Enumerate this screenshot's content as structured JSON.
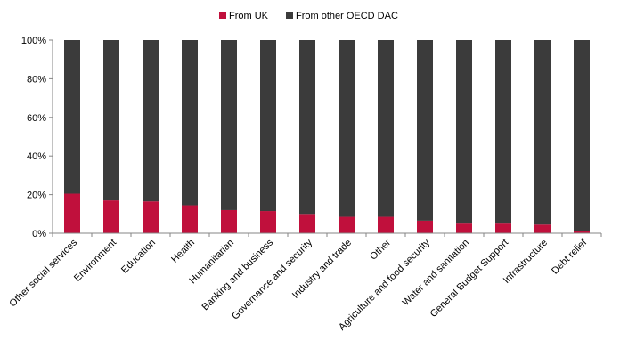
{
  "chart_data": {
    "type": "bar",
    "stacked": true,
    "percent": true,
    "categories": [
      "Other social services",
      "Environment",
      "Education",
      "Health",
      "Humanitarian",
      "Banking and business",
      "Governance and security",
      "Industry and trade",
      "Other",
      "Agriculture and food security",
      "Water and sanitation",
      "General Budget Support",
      "Infrastructure",
      "Debt relief"
    ],
    "series": [
      {
        "name": "From UK",
        "color": "#c0103c",
        "values": [
          20.5,
          17,
          16.5,
          14.5,
          12,
          11.5,
          10,
          8.5,
          8.5,
          6.5,
          5,
          5,
          4.5,
          1
        ]
      },
      {
        "name": "From other OECD DAC",
        "color": "#3b3b3b",
        "values": [
          79.5,
          83,
          83.5,
          85.5,
          88,
          88.5,
          90,
          91.5,
          91.5,
          93.5,
          95,
          95,
          95.5,
          99
        ]
      }
    ],
    "ylim": [
      0,
      100
    ],
    "yticks": [
      "0%",
      "20%",
      "40%",
      "60%",
      "80%",
      "100%"
    ],
    "legend_position": "top",
    "grid": false
  }
}
